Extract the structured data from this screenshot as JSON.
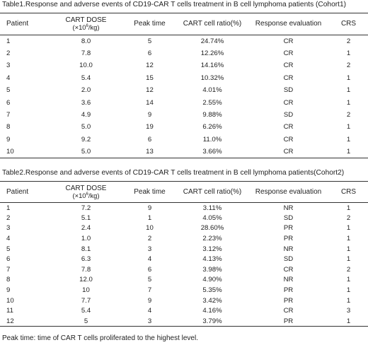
{
  "table1": {
    "caption": "Table1.Response and adverse events of CD19-CAR T cells treatment in B cell lymphoma patients (Cohort1)",
    "headers": {
      "patient": "Patient",
      "dose_line1": "CART DOSE",
      "dose_prefix": "(×10",
      "dose_exp": "6",
      "dose_suffix": "/kg)",
      "peak": "Peak time",
      "ratio": "CART cell ratio(%)",
      "response": "Response evaluation",
      "crs": "CRS"
    },
    "rows": [
      [
        "1",
        "8.0",
        "5",
        "24.74%",
        "CR",
        "2"
      ],
      [
        "2",
        "7.8",
        "6",
        "12.26%",
        "CR",
        "1"
      ],
      [
        "3",
        "10.0",
        "12",
        "14.16%",
        "CR",
        "2"
      ],
      [
        "4",
        "5.4",
        "15",
        "10.32%",
        "CR",
        "1"
      ],
      [
        "5",
        "2.0",
        "12",
        "4.01%",
        "SD",
        "1"
      ],
      [
        "6",
        "3.6",
        "14",
        "2.55%",
        "CR",
        "1"
      ],
      [
        "7",
        "4.9",
        "9",
        "9.88%",
        "SD",
        "2"
      ],
      [
        "8",
        "5.0",
        "19",
        "6.26%",
        "CR",
        "1"
      ],
      [
        "9",
        "9.2",
        "6",
        "11.0%",
        "CR",
        "1"
      ],
      [
        "10",
        "5.0",
        "13",
        "3.66%",
        "CR",
        "1"
      ]
    ]
  },
  "table2": {
    "caption": "Table2.Response and adverse events of CD19-CAR T cells treatment in B cell lymphoma patients(Cohort2)",
    "headers": {
      "patient": "Patient",
      "dose_line1": "CART DOSE",
      "dose_prefix": "(×10",
      "dose_exp": "6",
      "dose_suffix": "/kg)",
      "peak": "Peak time",
      "ratio": "CART cell ratio(%)",
      "response": "Response evaluation",
      "crs": "CRS"
    },
    "rows": [
      [
        "1",
        "7.2",
        "9",
        "3.11%",
        "NR",
        "1"
      ],
      [
        "2",
        "5.1",
        "1",
        "4.05%",
        "SD",
        "2"
      ],
      [
        "3",
        "2.4",
        "10",
        "28.60%",
        "PR",
        "1"
      ],
      [
        "4",
        "1.0",
        "2",
        "2.23%",
        "PR",
        "1"
      ],
      [
        "5",
        "8.1",
        "3",
        "3.12%",
        "NR",
        "1"
      ],
      [
        "6",
        "6.3",
        "4",
        "4.13%",
        "SD",
        "1"
      ],
      [
        "7",
        "7.8",
        "6",
        "3.98%",
        "CR",
        "2"
      ],
      [
        "8",
        "12.0",
        "5",
        "4.90%",
        "NR",
        "1"
      ],
      [
        "9",
        "10",
        "7",
        "5.35%",
        "PR",
        "1"
      ],
      [
        "10",
        "7.7",
        "9",
        "3.42%",
        "PR",
        "1"
      ],
      [
        "11",
        "5.4",
        "4",
        "4.16%",
        "CR",
        "3"
      ],
      [
        "12",
        "5",
        "3",
        "3.79%",
        "PR",
        "1"
      ]
    ]
  },
  "footnote": "Peak time: time of CAR T cells proliferated to the highest level."
}
